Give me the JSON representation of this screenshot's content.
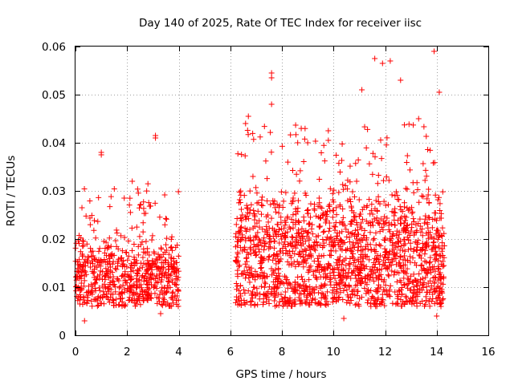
{
  "chart_data": {
    "type": "scatter",
    "title": "Day 140 of 2025, Rate Of TEC Index for receiver iisc",
    "xlabel": "GPS time / hours",
    "ylabel": "ROTI / TECUs",
    "xlim": [
      0,
      16
    ],
    "ylim": [
      0,
      0.06
    ],
    "x_ticks": [
      0,
      2,
      4,
      6,
      8,
      10,
      12,
      14,
      16
    ],
    "x_tick_labels": [
      "0",
      "2",
      "4",
      "6",
      "8",
      "10",
      "12",
      "14",
      "16"
    ],
    "y_ticks": [
      0,
      0.01,
      0.02,
      0.03,
      0.04,
      0.05,
      0.06
    ],
    "y_tick_labels": [
      "0",
      "0.01",
      "0.02",
      "0.03",
      "0.04",
      "0.05",
      "0.06"
    ],
    "grid": true,
    "marker": "plus",
    "color": "#ff0000",
    "series": [
      {
        "name": "ROTI",
        "segments": [
          {
            "x_range": [
              0.0,
              4.0
            ],
            "y_range": [
              0.003,
              0.042
            ],
            "typical": [
              0.006,
              0.022
            ],
            "count": 650
          },
          {
            "x_range": [
              6.2,
              14.3
            ],
            "y_range": [
              0.003,
              0.059
            ],
            "typical": [
              0.006,
              0.032
            ],
            "count": 1700
          }
        ],
        "notable_points": [
          {
            "x": 0.35,
            "y": 0.003
          },
          {
            "x": 0.25,
            "y": 0.0265
          },
          {
            "x": 1.0,
            "y": 0.038
          },
          {
            "x": 1.0,
            "y": 0.0375
          },
          {
            "x": 2.2,
            "y": 0.032
          },
          {
            "x": 3.1,
            "y": 0.0415
          },
          {
            "x": 3.1,
            "y": 0.041
          },
          {
            "x": 3.3,
            "y": 0.0045
          },
          {
            "x": 6.7,
            "y": 0.0455
          },
          {
            "x": 7.6,
            "y": 0.0545
          },
          {
            "x": 7.6,
            "y": 0.0535
          },
          {
            "x": 7.6,
            "y": 0.048
          },
          {
            "x": 9.0,
            "y": 0.04
          },
          {
            "x": 9.8,
            "y": 0.0425
          },
          {
            "x": 9.8,
            "y": 0.0405
          },
          {
            "x": 10.4,
            "y": 0.0035
          },
          {
            "x": 11.1,
            "y": 0.051
          },
          {
            "x": 11.6,
            "y": 0.0575
          },
          {
            "x": 11.9,
            "y": 0.0565
          },
          {
            "x": 12.2,
            "y": 0.057
          },
          {
            "x": 12.6,
            "y": 0.053
          },
          {
            "x": 13.3,
            "y": 0.045
          },
          {
            "x": 13.9,
            "y": 0.059
          },
          {
            "x": 14.1,
            "y": 0.0505
          },
          {
            "x": 14.0,
            "y": 0.004
          }
        ]
      }
    ]
  }
}
